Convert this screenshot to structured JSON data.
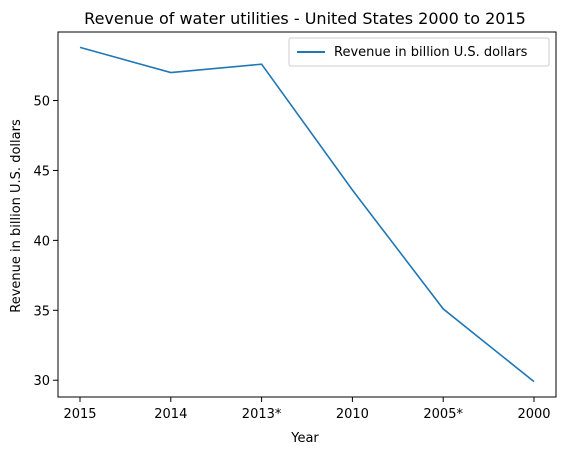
{
  "chart_data": {
    "type": "line",
    "title": "Revenue of water utilities - United States 2000 to 2015",
    "xlabel": "Year",
    "ylabel": "Revenue in billion U.S. dollars",
    "categories": [
      "2015",
      "2014",
      "2013*",
      "2010",
      "2005*",
      "2000"
    ],
    "series": [
      {
        "name": "Revenue in billion U.S. dollars",
        "values": [
          53.8,
          52.0,
          52.6,
          43.6,
          35.1,
          29.9
        ],
        "color": "#1f77b4"
      }
    ],
    "ylim": [
      28.8,
      54.9
    ],
    "yticks": [
      30,
      35,
      40,
      45,
      50
    ],
    "grid": false,
    "legend_position": "top-right"
  }
}
